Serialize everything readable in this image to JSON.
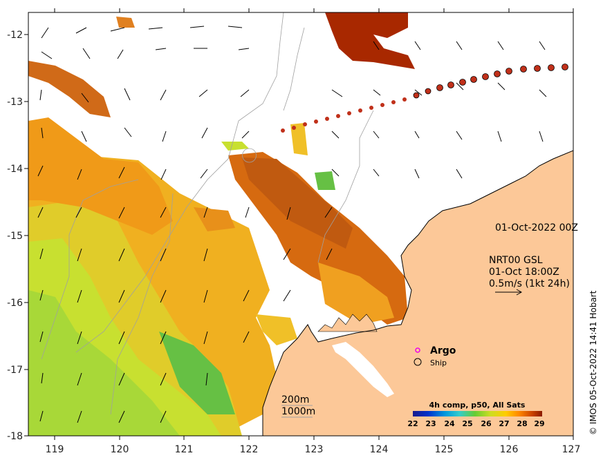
{
  "map": {
    "lon_ticks": [
      "119",
      "120",
      "121",
      "122",
      "123",
      "124",
      "125",
      "126",
      "127"
    ],
    "lat_ticks": [
      "-12",
      "-13",
      "-14",
      "-15",
      "-16",
      "-17",
      "-18"
    ]
  },
  "annotations": {
    "analysis_time": "01-Oct-2022 00Z",
    "current_source": "NRT00 GSL",
    "current_time": "01-Oct 18:00Z",
    "vector_scale": "0.5m/s (1kt 24h)",
    "contour_200": "200m",
    "contour_1000": "1000m",
    "credit": "© IMOS 05-Oct-2022 14:41 Hobart"
  },
  "legend": {
    "argo_label": "Argo",
    "ship_label": "Ship"
  },
  "colorbar": {
    "title": "4h comp, p50, All Sats",
    "ticks": [
      "22",
      "23",
      "24",
      "25",
      "26",
      "27",
      "28",
      "29"
    ],
    "colors": [
      "#1a1a8c",
      "#0033cc",
      "#0099dd",
      "#33cccc",
      "#66cc33",
      "#ccdd22",
      "#ffcc00",
      "#ff8800",
      "#cc4400",
      "#8b1a00"
    ]
  },
  "colors": {
    "land": "#fcc898",
    "ship_track": "#c0301a",
    "argo": "#ee00ee"
  }
}
